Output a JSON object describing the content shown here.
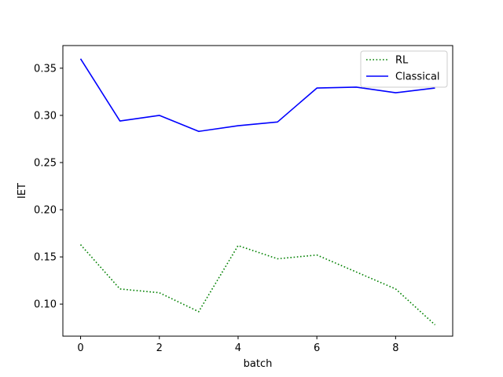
{
  "chart_data": {
    "type": "line",
    "title": "",
    "xlabel": "batch",
    "ylabel": "IET",
    "xlim": [
      -0.45,
      9.45
    ],
    "ylim": [
      0.066,
      0.374
    ],
    "xticks": [
      0,
      2,
      4,
      6,
      8
    ],
    "xtick_labels": [
      "0",
      "2",
      "4",
      "6",
      "8"
    ],
    "yticks": [
      0.1,
      0.15,
      0.2,
      0.25,
      0.3,
      0.35
    ],
    "ytick_labels": [
      "0.10",
      "0.15",
      "0.20",
      "0.25",
      "0.30",
      "0.35"
    ],
    "grid": false,
    "legend_position": "top-right",
    "x": [
      0,
      1,
      2,
      3,
      4,
      5,
      6,
      7,
      8,
      9
    ],
    "series": [
      {
        "name": "RL",
        "color": "#008000",
        "style": "dotted",
        "values": [
          0.163,
          0.116,
          0.112,
          0.092,
          0.162,
          0.148,
          0.152,
          0.134,
          0.116,
          0.078
        ]
      },
      {
        "name": "Classical",
        "color": "#0000ff",
        "style": "solid",
        "values": [
          0.36,
          0.294,
          0.3,
          0.283,
          0.289,
          0.293,
          0.329,
          0.33,
          0.324,
          0.329
        ]
      }
    ]
  }
}
